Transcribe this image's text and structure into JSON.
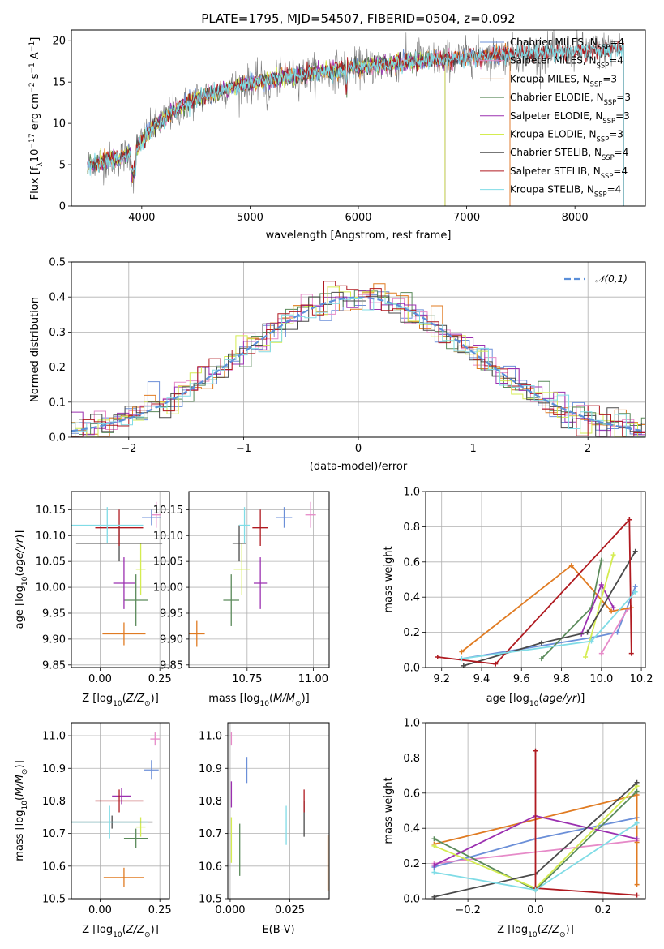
{
  "colors": {
    "Chabrier MILES": "#6b8fd8",
    "Salpeter MILES": "#e68ac8",
    "Kroupa MILES": "#e07b22",
    "Chabrier ELODIE": "#5a8a5a",
    "Salpeter ELODIE": "#9b30b0",
    "Kroupa ELODIE": "#d4ec50",
    "Chabrier STELIB": "#4a4a4a",
    "Salpeter STELIB": "#b01a20",
    "Kroupa STELIB": "#80dce6",
    "normal": "#5b8fd9",
    "grid": "#b0b0b0"
  },
  "chart_data": [
    {
      "id": "spectrum",
      "type": "line",
      "title": "PLATE=1795, MJD=54507, FIBERID=0504, z=0.092",
      "xlabel": "wavelength [Angstrom, rest frame]",
      "ylabel": "Flux [f_λ 10^-17 erg cm^-2 s^-1 A^-1]",
      "xlim": [
        3350,
        8650
      ],
      "ylim": [
        0,
        21.3
      ],
      "xticks": [
        4000,
        5000,
        6000,
        7000,
        8000
      ],
      "yticks": [
        0,
        5,
        10,
        15,
        20
      ],
      "grid": false,
      "legend_position": "top-right",
      "continuum": [
        [
          3500,
          5.0
        ],
        [
          3800,
          5.8
        ],
        [
          3950,
          7.0
        ],
        [
          4100,
          9.5
        ],
        [
          4300,
          11.5
        ],
        [
          4500,
          13.0
        ],
        [
          4800,
          14.3
        ],
        [
          5100,
          15.1
        ],
        [
          5400,
          15.7
        ],
        [
          5700,
          16.3
        ],
        [
          6000,
          16.8
        ],
        [
          6300,
          17.2
        ],
        [
          6600,
          17.6
        ],
        [
          7000,
          18.0
        ],
        [
          7400,
          18.4
        ],
        [
          8000,
          18.7
        ],
        [
          8450,
          19.0
        ]
      ],
      "series_data": [
        {
          "label": "Chabrier MILES",
          "nssp": "4",
          "wave_end": 7400
        },
        {
          "label": "Salpeter MILES",
          "nssp": "4",
          "wave_end": 7400
        },
        {
          "label": "Kroupa MILES",
          "nssp": "3",
          "wave_end": 7400
        },
        {
          "label": "Chabrier ELODIE",
          "nssp": "3",
          "wave_end": 6800
        },
        {
          "label": "Salpeter ELODIE",
          "nssp": "3",
          "wave_end": 6800
        },
        {
          "label": "Kroupa ELODIE",
          "nssp": "3",
          "wave_end": 6800
        },
        {
          "label": "Chabrier STELIB",
          "nssp": "4",
          "wave_end": 8450
        },
        {
          "label": "Salpeter STELIB",
          "nssp": "4",
          "wave_end": 8450
        },
        {
          "label": "Kroupa STELIB",
          "nssp": "4",
          "wave_end": 8450
        }
      ]
    },
    {
      "id": "residuals",
      "type": "bar",
      "xlabel": "(data-model)/error",
      "ylabel": "Normed distribution",
      "xlim": [
        -2.5,
        2.5
      ],
      "ylim": [
        0,
        0.5
      ],
      "xticks": [
        -2,
        -1,
        0,
        1,
        2
      ],
      "yticks": [
        0.0,
        0.1,
        0.2,
        0.3,
        0.4,
        0.5
      ],
      "grid": true,
      "bin_width": 0.1,
      "legend": "𝒩(0,1)",
      "legend_position": "top-right"
    },
    {
      "id": "age-vs-Z",
      "type": "scatter",
      "xlabel": "Z [log10(Z/Z⊙)]",
      "ylabel": "age  [log10(age/yr)]",
      "xlim": [
        -0.12,
        0.29
      ],
      "ylim": [
        9.845,
        10.185
      ],
      "xticks": [
        0.0,
        0.25
      ],
      "yticks": [
        9.85,
        9.9,
        9.95,
        10.0,
        10.05,
        10.1,
        10.15
      ],
      "grid": true,
      "points": [
        {
          "label": "Chabrier MILES",
          "x": 0.215,
          "y": 10.135,
          "xerr": 0.04,
          "yerr": 0.015
        },
        {
          "label": "Salpeter MILES",
          "x": 0.235,
          "y": 10.14,
          "xerr": 0.02,
          "yerr": 0.025
        },
        {
          "label": "Kroupa MILES",
          "x": 0.1,
          "y": 9.91,
          "xerr": 0.09,
          "yerr": 0.022
        },
        {
          "label": "Chabrier ELODIE",
          "x": 0.15,
          "y": 9.975,
          "xerr": 0.05,
          "yerr": 0.05
        },
        {
          "label": "Salpeter ELODIE",
          "x": 0.1,
          "y": 10.008,
          "xerr": 0.045,
          "yerr": 0.05
        },
        {
          "label": "Kroupa ELODIE",
          "x": 0.17,
          "y": 10.035,
          "xerr": 0.02,
          "yerr": 0.05
        },
        {
          "label": "Chabrier STELIB",
          "x": 0.08,
          "y": 10.085,
          "xerr": 0.18,
          "yerr": 0.035
        },
        {
          "label": "Salpeter STELIB",
          "x": 0.08,
          "y": 10.115,
          "xerr": 0.1,
          "yerr": 0.035
        },
        {
          "label": "Kroupa STELIB",
          "x": 0.03,
          "y": 10.12,
          "xerr": 0.15,
          "yerr": 0.035
        }
      ]
    },
    {
      "id": "age-vs-mass",
      "type": "scatter",
      "xlabel": "mass [log10(M/M⊙)]",
      "ylabel": "",
      "xlim": [
        10.53,
        11.06
      ],
      "ylim": [
        9.845,
        10.185
      ],
      "xticks": [
        10.5,
        10.75,
        11.0
      ],
      "yticks": [
        9.85,
        9.9,
        9.95,
        10.0,
        10.05,
        10.1,
        10.15
      ],
      "grid": true,
      "points": [
        {
          "label": "Chabrier MILES",
          "x": 10.89,
          "y": 10.135,
          "xerr": 0.03,
          "yerr": 0.02
        },
        {
          "label": "Salpeter MILES",
          "x": 10.99,
          "y": 10.14,
          "xerr": 0.02,
          "yerr": 0.025
        },
        {
          "label": "Kroupa MILES",
          "x": 10.56,
          "y": 9.91,
          "xerr": 0.03,
          "yerr": 0.025
        },
        {
          "label": "Chabrier ELODIE",
          "x": 10.69,
          "y": 9.975,
          "xerr": 0.03,
          "yerr": 0.05
        },
        {
          "label": "Salpeter ELODIE",
          "x": 10.8,
          "y": 10.008,
          "xerr": 0.025,
          "yerr": 0.05
        },
        {
          "label": "Kroupa ELODIE",
          "x": 10.73,
          "y": 10.035,
          "xerr": 0.03,
          "yerr": 0.05
        },
        {
          "label": "Chabrier STELIB",
          "x": 10.72,
          "y": 10.085,
          "xerr": 0.025,
          "yerr": 0.035
        },
        {
          "label": "Salpeter STELIB",
          "x": 10.8,
          "y": 10.115,
          "xerr": 0.03,
          "yerr": 0.035
        },
        {
          "label": "Kroupa STELIB",
          "x": 10.74,
          "y": 10.12,
          "xerr": 0.02,
          "yerr": 0.035
        }
      ]
    },
    {
      "id": "weight-vs-age",
      "type": "line",
      "xlabel": "age  [log10(age/yr)]",
      "ylabel": "mass weight",
      "xlim": [
        9.12,
        10.22
      ],
      "ylim": [
        0,
        1.0
      ],
      "xticks": [
        9.2,
        9.4,
        9.6,
        9.8,
        10.0,
        10.2
      ],
      "yticks": [
        0.0,
        0.2,
        0.4,
        0.6,
        0.8,
        1.0
      ],
      "grid": true,
      "series": [
        {
          "label": "Chabrier MILES",
          "x": [
            9.3,
            9.95,
            10.08,
            10.17
          ],
          "y": [
            0.05,
            0.17,
            0.2,
            0.46
          ]
        },
        {
          "label": "Salpeter MILES",
          "x": [
            10.0,
            10.13
          ],
          "y": [
            0.08,
            0.33
          ]
        },
        {
          "label": "Kroupa MILES",
          "x": [
            9.3,
            9.85,
            10.05,
            10.15
          ],
          "y": [
            0.09,
            0.58,
            0.32,
            0.34
          ]
        },
        {
          "label": "Chabrier ELODIE",
          "x": [
            9.7,
            9.95,
            10.0
          ],
          "y": [
            0.05,
            0.34,
            0.61
          ]
        },
        {
          "label": "Salpeter ELODIE",
          "x": [
            9.9,
            10.0,
            10.06
          ],
          "y": [
            0.19,
            0.47,
            0.34
          ]
        },
        {
          "label": "Kroupa ELODIE",
          "x": [
            9.92,
            10.06
          ],
          "y": [
            0.06,
            0.64
          ]
        },
        {
          "label": "Chabrier STELIB",
          "x": [
            9.31,
            9.7,
            9.93,
            10.17
          ],
          "y": [
            0.01,
            0.14,
            0.2,
            0.66
          ]
        },
        {
          "label": "Salpeter STELIB",
          "x": [
            9.18,
            9.47,
            10.14,
            10.15
          ],
          "y": [
            0.06,
            0.02,
            0.84,
            0.08
          ]
        },
        {
          "label": "Kroupa STELIB",
          "x": [
            9.3,
            9.95,
            10.17
          ],
          "y": [
            0.05,
            0.15,
            0.43
          ]
        }
      ]
    },
    {
      "id": "mass-vs-Z",
      "type": "scatter",
      "xlabel": "Z [log10(Z/Z⊙)]",
      "ylabel": "mass [log10(M/M⊙)]",
      "xlim": [
        -0.12,
        0.29
      ],
      "ylim": [
        10.5,
        11.04
      ],
      "xticks": [
        0.0,
        0.25
      ],
      "yticks": [
        10.5,
        10.6,
        10.7,
        10.8,
        10.9,
        11.0
      ],
      "grid": true,
      "points": [
        {
          "label": "Chabrier MILES",
          "x": 0.215,
          "y": 10.895,
          "xerr": 0.03,
          "yerr": 0.03
        },
        {
          "label": "Salpeter MILES",
          "x": 0.23,
          "y": 10.99,
          "xerr": 0.02,
          "yerr": 0.02
        },
        {
          "label": "Kroupa MILES",
          "x": 0.1,
          "y": 10.565,
          "xerr": 0.085,
          "yerr": 0.03
        },
        {
          "label": "Chabrier ELODIE",
          "x": 0.15,
          "y": 10.685,
          "xerr": 0.05,
          "yerr": 0.03
        },
        {
          "label": "Salpeter ELODIE",
          "x": 0.09,
          "y": 10.815,
          "xerr": 0.04,
          "yerr": 0.025
        },
        {
          "label": "Kroupa ELODIE",
          "x": 0.17,
          "y": 10.72,
          "xerr": 0.02,
          "yerr": 0.03
        },
        {
          "label": "Chabrier STELIB",
          "x": 0.05,
          "y": 10.735,
          "xerr": 0.17,
          "yerr": 0.02
        },
        {
          "label": "Salpeter STELIB",
          "x": 0.08,
          "y": 10.8,
          "xerr": 0.1,
          "yerr": 0.035
        },
        {
          "label": "Kroupa STELIB",
          "x": 0.04,
          "y": 10.735,
          "xerr": 0.16,
          "yerr": 0.05
        }
      ]
    },
    {
      "id": "mass-vs-ebv",
      "type": "scatter",
      "xlabel": "E(B-V)",
      "ylabel": "",
      "xlim": [
        -0.001,
        0.0415
      ],
      "ylim": [
        10.5,
        11.04
      ],
      "xticks": [
        0.0,
        0.025
      ],
      "yticks": [
        10.5,
        10.6,
        10.7,
        10.8,
        10.9,
        11.0
      ],
      "grid": true,
      "points": [
        {
          "label": "Chabrier MILES",
          "x": 0.007,
          "y": 10.895,
          "xerr": 0,
          "yerr": 0.04
        },
        {
          "label": "Salpeter MILES",
          "x": 0.0005,
          "y": 10.99,
          "xerr": 0,
          "yerr": 0.02
        },
        {
          "label": "Kroupa MILES",
          "x": 0.041,
          "y": 10.61,
          "xerr": 0,
          "yerr": 0.085
        },
        {
          "label": "Chabrier ELODIE",
          "x": 0.004,
          "y": 10.65,
          "xerr": 0,
          "yerr": 0.08
        },
        {
          "label": "Salpeter ELODIE",
          "x": 0.0005,
          "y": 10.82,
          "xerr": 0,
          "yerr": 0.04
        },
        {
          "label": "Kroupa ELODIE",
          "x": 0.0005,
          "y": 10.68,
          "xerr": 0,
          "yerr": 0.07
        },
        {
          "label": "Chabrier STELIB",
          "x": 0.031,
          "y": 10.745,
          "xerr": 0,
          "yerr": 0.055
        },
        {
          "label": "Salpeter STELIB",
          "x": 0.031,
          "y": 10.8,
          "xerr": 0,
          "yerr": 0.035
        },
        {
          "label": "Kroupa STELIB",
          "x": 0.0235,
          "y": 10.725,
          "xerr": 0,
          "yerr": 0.06
        }
      ]
    },
    {
      "id": "weight-vs-Z",
      "type": "line",
      "xlabel": "Z [log10(Z/Z⊙)]",
      "ylabel": "mass weight",
      "xlim": [
        -0.325,
        0.325
      ],
      "ylim": [
        0,
        1.0
      ],
      "xticks": [
        -0.2,
        0.0,
        0.2
      ],
      "yticks": [
        0.0,
        0.2,
        0.4,
        0.6,
        0.8,
        1.0
      ],
      "grid": true,
      "series": [
        {
          "label": "Chabrier MILES",
          "x": [
            -0.3,
            0.0,
            0.3
          ],
          "y": [
            0.18,
            0.34,
            0.46
          ]
        },
        {
          "label": "Salpeter MILES",
          "x": [
            -0.3,
            0.3
          ],
          "y": [
            0.2,
            0.33
          ]
        },
        {
          "label": "Kroupa MILES",
          "x": [
            -0.3,
            0.3,
            0.3,
            0.3
          ],
          "y": [
            0.31,
            0.59,
            0.08,
            0.32
          ]
        },
        {
          "label": "Chabrier ELODIE",
          "x": [
            -0.3,
            0.0,
            0.3
          ],
          "y": [
            0.34,
            0.05,
            0.61
          ]
        },
        {
          "label": "Salpeter ELODIE",
          "x": [
            -0.3,
            0.0,
            0.3
          ],
          "y": [
            0.19,
            0.47,
            0.34
          ]
        },
        {
          "label": "Kroupa ELODIE",
          "x": [
            -0.3,
            0.0,
            0.3
          ],
          "y": [
            0.3,
            0.06,
            0.64
          ]
        },
        {
          "label": "Chabrier STELIB",
          "x": [
            -0.3,
            0.0,
            0.3
          ],
          "y": [
            0.01,
            0.14,
            0.66
          ]
        },
        {
          "label": "Salpeter STELIB",
          "x": [
            0.0,
            0.0,
            0.3
          ],
          "y": [
            0.84,
            0.06,
            0.02
          ]
        },
        {
          "label": "Kroupa STELIB",
          "x": [
            -0.3,
            0.0,
            0.3
          ],
          "y": [
            0.15,
            0.05,
            0.43
          ]
        }
      ]
    }
  ]
}
